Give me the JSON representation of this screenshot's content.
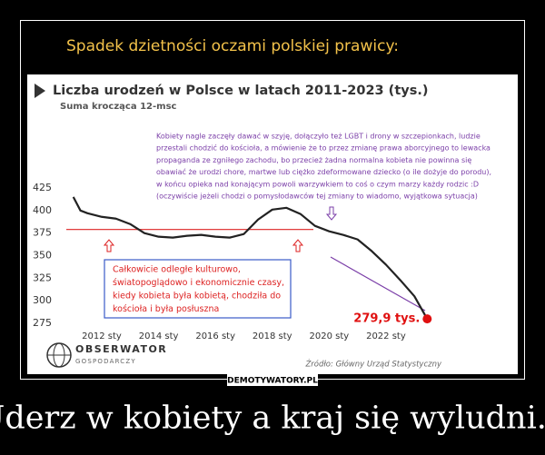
{
  "header": "Spadek dzietności oczami polskiej prawicy:",
  "chart_data": {
    "type": "line",
    "title": "Liczba urodzeń w Polsce w latach 2011-2023 (tys.)",
    "subtitle": "Suma krocząca 12-msc",
    "x": [
      2011.0,
      2011.25,
      2011.5,
      2012.0,
      2012.5,
      2013.0,
      2013.5,
      2014.0,
      2014.5,
      2015.0,
      2015.5,
      2016.0,
      2016.5,
      2017.0,
      2017.5,
      2018.0,
      2018.5,
      2019.0,
      2019.5,
      2020.0,
      2020.5,
      2021.0,
      2021.5,
      2022.0,
      2022.5,
      2023.0,
      2023.45
    ],
    "values": [
      415,
      400,
      397,
      393,
      391,
      385,
      375,
      371,
      370,
      372,
      373,
      371,
      370,
      374,
      390,
      401,
      403,
      396,
      383,
      377,
      373,
      368,
      355,
      340,
      323,
      305,
      279.9
    ],
    "value_labels": [
      null,
      null,
      null,
      null,
      null,
      null,
      null,
      null,
      null,
      null,
      null,
      null,
      null,
      null,
      null,
      null,
      null,
      null,
      null,
      null,
      null,
      null,
      null,
      null,
      null,
      null,
      "279,9 tys."
    ],
    "color": "#222222",
    "xlim": [
      2010.9,
      2023.6
    ],
    "xticks": [
      {
        "value": 2012,
        "label": "2012 sty"
      },
      {
        "value": 2014,
        "label": "2014 sty"
      },
      {
        "value": 2016,
        "label": "2016 sty"
      },
      {
        "value": 2018,
        "label": "2018 sty"
      },
      {
        "value": 2020,
        "label": "2020 sty"
      },
      {
        "value": 2022,
        "label": "2022 sty"
      }
    ],
    "ylim": [
      272,
      428
    ],
    "yticks": [
      275,
      300,
      325,
      350,
      375,
      400,
      425
    ],
    "reference_line": 379,
    "annotations": [
      "Kobiety nagle zaczęły dawać w szyję, dołączyło też LGBT i drony w szczepionkach, ludzie",
      "przestali chodzić do kościoła, a mówienie że to przez zmianę prawa aborcyjnego to lewacka",
      "propaganda ze zgniłego zachodu, bo przecież żadna normalna kobieta nie powinna się",
      "obawiać że urodzi chore, martwe lub ciężko zdeformowane dziecko (o ile dożyje do porodu),",
      "w końcu opieka nad konającym powoli warzywkiem to coś o czym marzy każdy rodzic :D",
      "(oczywiście jeżeli chodzi o pomysłodawców tej zmiany to wiadomo, wyjątkowa sytuacja)"
    ],
    "box_lines": [
      "Całkowicie odległe kulturowo,",
      "światopoglądowo i ekonomicznie czasy,",
      "kiedy kobieta była kobietą, chodziła do",
      "kościoła i była posłuszna"
    ],
    "source": "Źródło: Główny Urząd Statystyczny"
  },
  "logo": {
    "name": "OBSERWATOR",
    "sub": "GOSPODARCZY"
  },
  "watermark": "DEMOTYWATORY.PL",
  "caption": "Uderz w kobiety a kraj się wyludni..."
}
